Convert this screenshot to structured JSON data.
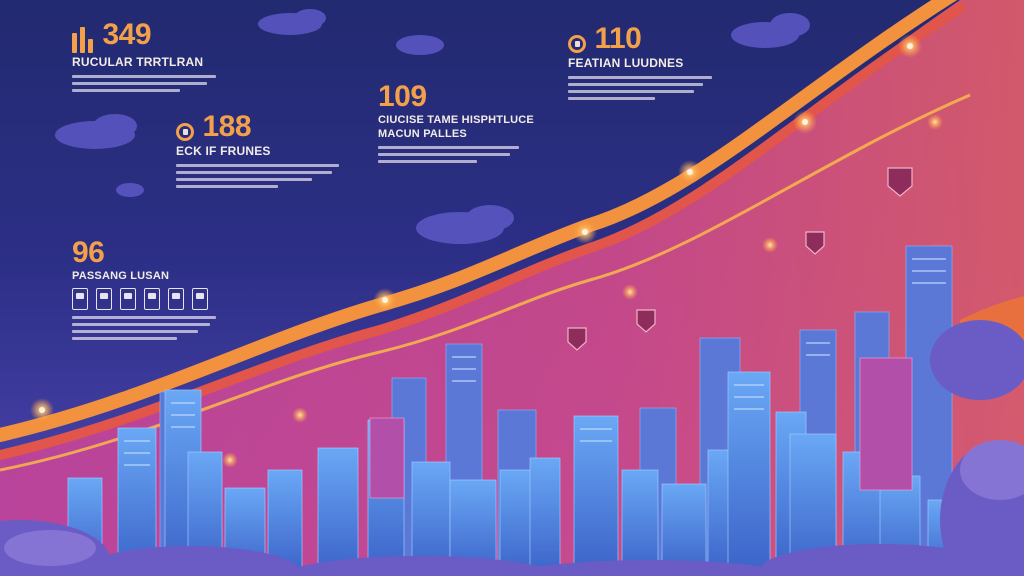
{
  "colors": {
    "sky_top": "#222a70",
    "sky_bottom": "#5a4ab0",
    "accent_orange": "#f2a04a",
    "band_red": "#e2554a",
    "band_magenta": "#c2449a",
    "building_blue": "#4e8fe8",
    "cloud_purple": "#6a5cc4"
  },
  "stats": [
    {
      "value": "349",
      "label": "RUCULAR TRRTLRAN",
      "icon": "bar-chart-icon"
    },
    {
      "value": "188",
      "label": "ECK IF FRUNES",
      "icon": "person-badge-icon"
    },
    {
      "value": "109",
      "label": "CIUCISE TAME HISPHTLUCE",
      "sublabel": "MACUN PALLES",
      "icon": ""
    },
    {
      "value": "110",
      "label": "FEATIAN LUUDNES",
      "icon": "person-badge-icon"
    },
    {
      "value": "96",
      "label": "PASSANG LUSAN",
      "icon": ""
    }
  ],
  "scene": {
    "building_icons": [
      "skyscraper-icon",
      "tower-icon",
      "office-icon"
    ],
    "marker_icons": [
      "shield-badge-icon",
      "shield-badge-icon",
      "shield-badge-icon",
      "shield-badge-icon"
    ]
  }
}
